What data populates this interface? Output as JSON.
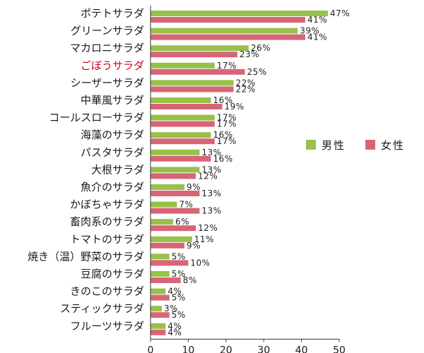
{
  "chart_data": {
    "type": "bar",
    "orientation": "horizontal",
    "title": "",
    "xlabel": "",
    "ylabel": "",
    "xlim": [
      0,
      50
    ],
    "x_ticks": [
      0,
      10,
      20,
      30,
      40,
      50
    ],
    "value_suffix": "%",
    "grid": false,
    "legend_position": "right",
    "highlight_category": "ごぼうサラダ",
    "highlight_color": "#d0001c",
    "categories": [
      "ポテトサラダ",
      "グリーンサラダ",
      "マカロニサラダ",
      "ごぼうサラダ",
      "シーザーサラダ",
      "中華風サラダ",
      "コールスローサラダ",
      "海藻のサラダ",
      "パスタサラダ",
      "大根サラダ",
      "魚介のサラダ",
      "かぼちゃサラダ",
      "畜肉系のサラダ",
      "トマトのサラダ",
      "焼き（温）野菜のサラダ",
      "豆腐のサラダ",
      "きのこのサラダ",
      "スティックサラダ",
      "フルーツサラダ"
    ],
    "series": [
      {
        "name": "男性",
        "color": "#97c14a",
        "values": [
          47,
          39,
          26,
          17,
          22,
          16,
          17,
          16,
          13,
          13,
          9,
          7,
          6,
          11,
          5,
          5,
          4,
          3,
          4
        ]
      },
      {
        "name": "女性",
        "color": "#d86577",
        "values": [
          41,
          41,
          23,
          25,
          22,
          19,
          17,
          17,
          16,
          12,
          13,
          13,
          12,
          9,
          10,
          8,
          5,
          5,
          4
        ]
      }
    ]
  }
}
